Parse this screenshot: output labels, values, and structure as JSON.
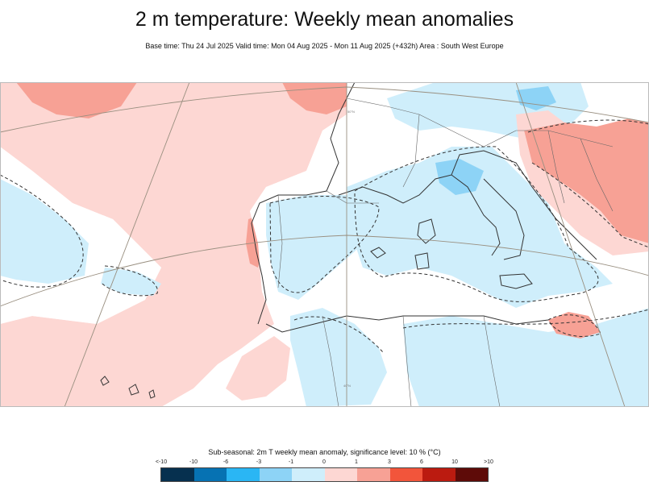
{
  "header": {
    "title": "2 m temperature: Weekly mean anomalies",
    "subtitle": "Base time: Thu 24 Jul 2025 Valid time: Mon 04 Aug 2025 - Mon 11 Aug 2025 (+432h) Area : South West Europe"
  },
  "map": {
    "region": "South West Europe",
    "graticule_labels": [
      "40°N",
      "50°N"
    ]
  },
  "legend": {
    "title": "Sub-seasonal: 2m T weekly mean anomaly, significance level: 10 % (°C)",
    "ticks": [
      "<-10",
      "-10",
      "-6",
      "-3",
      "-1",
      "0",
      "1",
      "3",
      "6",
      "10",
      ">10"
    ],
    "colors": [
      "#06304f",
      "#0672b3",
      "#2ab6f4",
      "#8dd3f6",
      "#cfeefb",
      "#fdd7d3",
      "#f7a195",
      "#f2553b",
      "#bb1b10",
      "#5e0b08"
    ]
  }
}
